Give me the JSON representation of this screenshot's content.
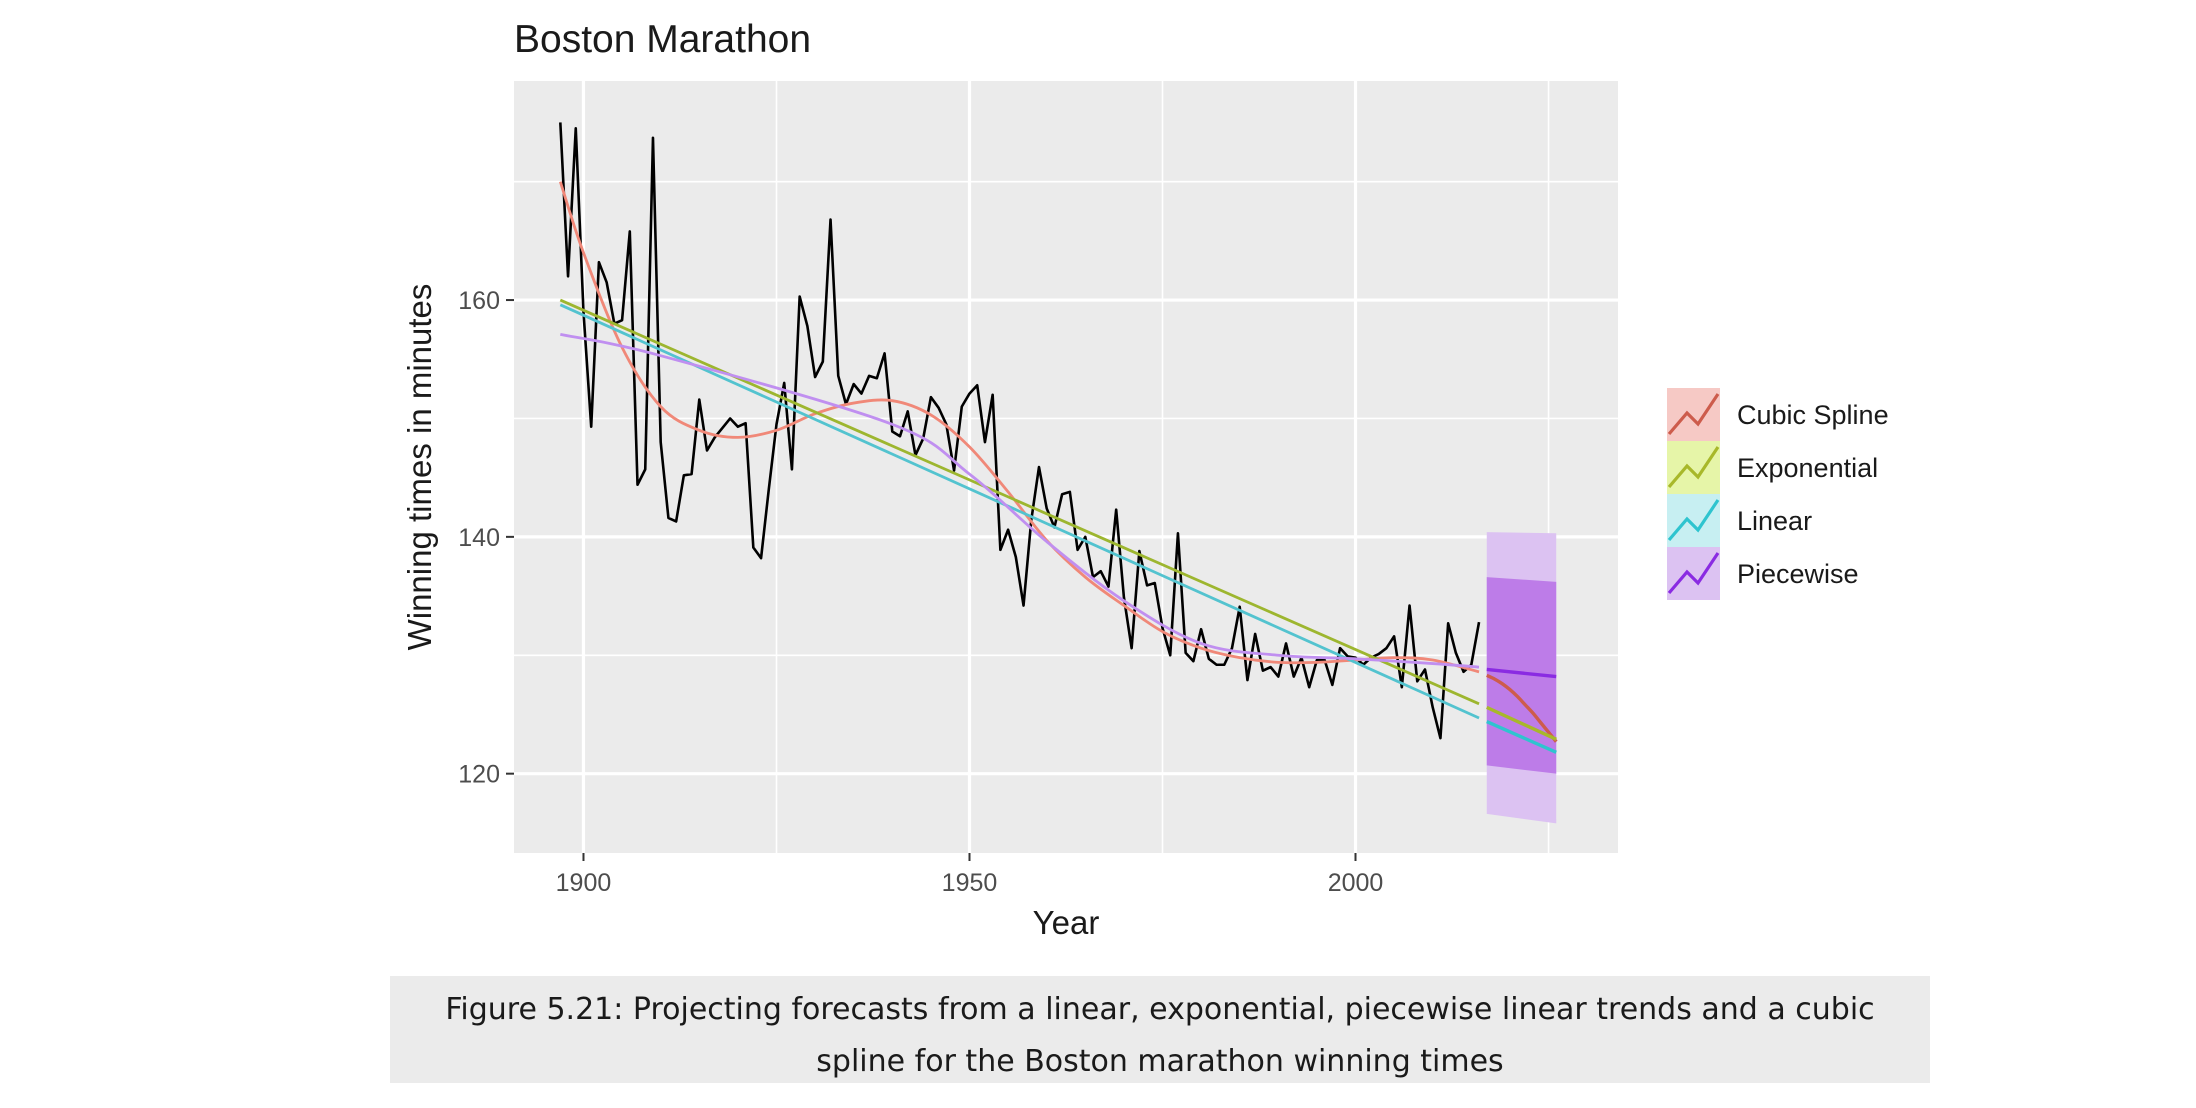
{
  "caption": "Figure 5.21: Projecting forecasts from a linear, exponential, piecewise linear trends and a cubic spline for the Boston marathon winning times",
  "chart_data": {
    "type": "line",
    "title": "Boston Marathon",
    "xlabel": "Year",
    "ylabel": "Winning times in minutes",
    "xlim": [
      1891,
      2034
    ],
    "ylim": [
      113.3,
      178.5
    ],
    "x_ticks": [
      1900,
      1950,
      2000
    ],
    "y_ticks": [
      120,
      140,
      160
    ],
    "grid": true,
    "legend_position": "right",
    "background_color": "#ebebeb",
    "observed": {
      "color": "#000000",
      "x": [
        1897,
        1898,
        1899,
        1900,
        1901,
        1902,
        1903,
        1904,
        1905,
        1906,
        1907,
        1908,
        1909,
        1910,
        1911,
        1912,
        1913,
        1914,
        1915,
        1916,
        1917,
        1919,
        1920,
        1921,
        1922,
        1923,
        1924,
        1925,
        1926,
        1927,
        1928,
        1929,
        1930,
        1931,
        1932,
        1933,
        1934,
        1935,
        1936,
        1937,
        1938,
        1939,
        1940,
        1941,
        1942,
        1943,
        1944,
        1945,
        1946,
        1947,
        1948,
        1949,
        1950,
        1951,
        1952,
        1953,
        1954,
        1955,
        1956,
        1957,
        1958,
        1959,
        1960,
        1961,
        1962,
        1963,
        1964,
        1965,
        1966,
        1967,
        1968,
        1969,
        1970,
        1971,
        1972,
        1973,
        1974,
        1975,
        1976,
        1977,
        1978,
        1979,
        1980,
        1981,
        1982,
        1983,
        1984,
        1985,
        1986,
        1987,
        1988,
        1989,
        1990,
        1991,
        1992,
        1993,
        1994,
        1995,
        1996,
        1997,
        1998,
        1999,
        2000,
        2001,
        2002,
        2003,
        2004,
        2005,
        2006,
        2007,
        2008,
        2009,
        2010,
        2011,
        2012,
        2013,
        2014,
        2015,
        2016
      ],
      "y": [
        175,
        162,
        174.5,
        159,
        149.3,
        163.2,
        161.5,
        158,
        158.3,
        165.8,
        144.4,
        145.7,
        173.7,
        148,
        141.6,
        141.3,
        145.2,
        145.3,
        151.6,
        147.3,
        148.4,
        150,
        149.3,
        149.6,
        139.1,
        138.2,
        144,
        149.5,
        153,
        145.7,
        160.3,
        157.8,
        153.5,
        154.8,
        166.8,
        153.6,
        151.2,
        152.9,
        152.1,
        153.6,
        153.4,
        155.5,
        148.9,
        148.5,
        150.6,
        146.9,
        148.3,
        151.8,
        150.9,
        149.5,
        145.6,
        151,
        152.1,
        152.8,
        148,
        152,
        138.9,
        140.6,
        138.3,
        134.2,
        141.4,
        145.9,
        142.4,
        140.8,
        143.6,
        143.8,
        138.9,
        140,
        136.6,
        137.1,
        135.8,
        142.3,
        134.9,
        130.6,
        138.8,
        135.9,
        136.1,
        132.3,
        130,
        140.3,
        130.2,
        129.5,
        132.2,
        129.7,
        129.2,
        129.2,
        130.6,
        134.1,
        127.9,
        131.8,
        128.7,
        129,
        128.2,
        131,
        128.2,
        129.8,
        127.3,
        129.6,
        129.6,
        127.5,
        130.6,
        129.9,
        129.8,
        129.2,
        129.8,
        130.1,
        130.6,
        131.6,
        127.3,
        134.2,
        127.8,
        128.8,
        125.6,
        123,
        132.7,
        130.2,
        128.6,
        129.2,
        132.8
      ]
    },
    "series": [
      {
        "name": "Cubic Spline",
        "color": "#cd5c4c",
        "fit_color": "#f08878",
        "fill_color": "#f6c9c5",
        "fit": {
          "x": [
            1897,
            1900,
            1905,
            1910,
            1915,
            1920,
            1925,
            1930,
            1935,
            1940,
            1945,
            1950,
            1955,
            1960,
            1965,
            1970,
            1975,
            1980,
            1985,
            1990,
            1995,
            2000,
            2005,
            2010,
            2016
          ],
          "y": [
            170,
            164,
            156,
            151,
            149,
            148.4,
            149,
            150.4,
            151.3,
            151.5,
            150.3,
            147.6,
            143.8,
            139.7,
            136.6,
            134.2,
            132,
            130.6,
            129.8,
            129.4,
            129.4,
            129.6,
            129.8,
            129.6,
            128.6
          ]
        },
        "forecast": {
          "x": [
            2017,
            2018,
            2019,
            2020,
            2021,
            2022,
            2023,
            2024,
            2025,
            2026
          ],
          "y": [
            128.3,
            128,
            127.6,
            127.1,
            126.5,
            125.8,
            125.1,
            124.3,
            123.5,
            122.7
          ]
        }
      },
      {
        "name": "Exponential",
        "color": "#a8b82a",
        "fit_color": "#9db62f",
        "fill_color": "#e6f5a8",
        "fit": {
          "x": [
            1897,
            2016
          ],
          "y": [
            160,
            125.9
          ]
        },
        "forecast": {
          "x": [
            2017,
            2026
          ],
          "y": [
            125.6,
            122.9
          ]
        }
      },
      {
        "name": "Linear",
        "color": "#2ec4cf",
        "fit_color": "#53c3cf",
        "fill_color": "#c7eff2",
        "fit": {
          "x": [
            1897,
            2016
          ],
          "y": [
            159.6,
            124.7
          ]
        },
        "forecast": {
          "x": [
            2017,
            2026
          ],
          "y": [
            124.4,
            121.8
          ]
        }
      },
      {
        "name": "Piecewise",
        "color": "#8a2be2",
        "fit_color": "#c08ff0",
        "fill_color": "#dcc2f2",
        "fit": {
          "x": [
            1897,
            1910,
            1940,
            1950,
            1960,
            1970,
            1980,
            1990,
            2000,
            2010,
            2016
          ],
          "y": [
            157.1,
            155.3,
            149.5,
            145.3,
            139.6,
            134.6,
            131,
            130,
            129.7,
            129.3,
            129
          ]
        },
        "forecast": {
          "x": [
            2017,
            2026
          ],
          "y": [
            128.8,
            128.2
          ]
        },
        "interval95": {
          "x": [
            2017,
            2026
          ],
          "lower": [
            116.6,
            115.8
          ],
          "upper": [
            140.4,
            140.3
          ]
        },
        "interval80": {
          "x": [
            2017,
            2026
          ],
          "lower": [
            120.7,
            120
          ],
          "upper": [
            136.6,
            136.2
          ]
        },
        "interval80_color": "#bd7ce8",
        "interval95_color": "#dcc2f2"
      }
    ]
  }
}
